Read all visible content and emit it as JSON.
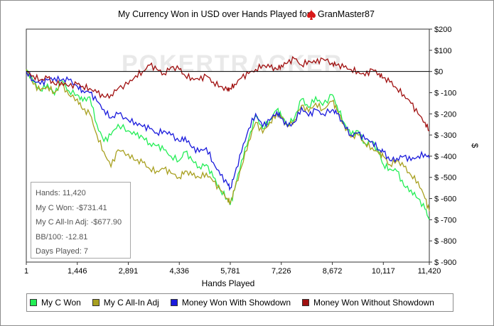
{
  "chart_data": {
    "type": "line",
    "title": "My Currency Won in USD over Hands Played for",
    "player": "GranMaster87",
    "watermark": "POKERTRACKER",
    "xlabel": "Hands Played",
    "ylabel": "$",
    "xlim": [
      1,
      11420
    ],
    "ylim": [
      -900,
      200
    ],
    "x_ticks": [
      "1",
      "1,446",
      "2,891",
      "4,336",
      "5,781",
      "7,226",
      "8,672",
      "10,117",
      "11,420"
    ],
    "x_tick_values": [
      1,
      1446,
      2891,
      4336,
      5781,
      7226,
      8672,
      10117,
      11420
    ],
    "y_ticks": [
      "$200",
      "$100",
      "$0",
      "$ -100",
      "$ -200",
      "$ -300",
      "$ -400",
      "$ -500",
      "$ -600",
      "$ -700",
      "$ -800",
      "$ -900"
    ],
    "y_tick_values": [
      200,
      100,
      0,
      -100,
      -200,
      -300,
      -400,
      -500,
      -600,
      -700,
      -800,
      -900
    ],
    "grid": false,
    "zero_line": true,
    "legend_position": "bottom",
    "x": [
      1,
      200,
      400,
      600,
      800,
      1000,
      1200,
      1446,
      1600,
      1800,
      2000,
      2200,
      2400,
      2600,
      2891,
      3100,
      3300,
      3500,
      3700,
      3900,
      4100,
      4336,
      4500,
      4700,
      4900,
      5100,
      5300,
      5500,
      5700,
      5781,
      5900,
      6100,
      6300,
      6500,
      6700,
      6900,
      7100,
      7226,
      7400,
      7600,
      7800,
      8000,
      8200,
      8400,
      8672,
      8800,
      9000,
      9200,
      9400,
      9600,
      9800,
      10000,
      10117,
      10300,
      10500,
      10700,
      10900,
      11100,
      11300,
      11420
    ],
    "series": [
      {
        "name": "My C Won",
        "color": "#22ee55",
        "values": [
          10,
          -50,
          -90,
          -60,
          -110,
          -40,
          -90,
          -110,
          -140,
          -120,
          -250,
          -330,
          -300,
          -250,
          -280,
          -300,
          -310,
          -340,
          -350,
          -370,
          -400,
          -420,
          -380,
          -420,
          -450,
          -440,
          -500,
          -560,
          -600,
          -630,
          -560,
          -420,
          -320,
          -210,
          -270,
          -230,
          -180,
          -210,
          -250,
          -220,
          -130,
          -170,
          -120,
          -160,
          -110,
          -160,
          -240,
          -300,
          -280,
          -340,
          -330,
          -390,
          -440,
          -460,
          -470,
          -540,
          -560,
          -600,
          -650,
          -700
        ]
      },
      {
        "name": "My C All-In Adj",
        "color": "#a8a020",
        "values": [
          10,
          -60,
          -90,
          -70,
          -100,
          -60,
          -110,
          -130,
          -180,
          -200,
          -300,
          -380,
          -450,
          -370,
          -390,
          -420,
          -430,
          -460,
          -470,
          -460,
          -480,
          -500,
          -470,
          -490,
          -500,
          -480,
          -520,
          -560,
          -600,
          -620,
          -560,
          -450,
          -330,
          -240,
          -290,
          -240,
          -200,
          -220,
          -260,
          -230,
          -160,
          -190,
          -150,
          -180,
          -140,
          -180,
          -250,
          -310,
          -300,
          -340,
          -360,
          -390,
          -400,
          -440,
          -420,
          -450,
          -490,
          -520,
          -600,
          -660
        ]
      },
      {
        "name": "Money Won With Showdown",
        "color": "#1a1adc",
        "values": [
          0,
          -40,
          -60,
          -40,
          -30,
          -40,
          -40,
          -70,
          -90,
          -100,
          -140,
          -180,
          -220,
          -200,
          -230,
          -240,
          -260,
          -270,
          -290,
          -280,
          -300,
          -330,
          -310,
          -360,
          -380,
          -360,
          -430,
          -490,
          -530,
          -550,
          -490,
          -380,
          -270,
          -200,
          -260,
          -230,
          -190,
          -220,
          -260,
          -240,
          -170,
          -210,
          -180,
          -200,
          -180,
          -200,
          -250,
          -300,
          -290,
          -320,
          -330,
          -370,
          -380,
          -420,
          -410,
          -400,
          -420,
          -400,
          -390,
          -410
        ]
      },
      {
        "name": "Money Won Without Showdown",
        "color": "#a01010",
        "values": [
          0,
          -20,
          -40,
          -30,
          -60,
          -50,
          -70,
          -60,
          -70,
          -80,
          -100,
          -120,
          -110,
          -80,
          -60,
          -20,
          0,
          30,
          10,
          -10,
          20,
          10,
          -20,
          -30,
          -40,
          -20,
          -50,
          -70,
          -90,
          -80,
          -60,
          -30,
          -10,
          10,
          30,
          20,
          10,
          30,
          40,
          60,
          30,
          50,
          40,
          60,
          40,
          30,
          20,
          10,
          0,
          -20,
          10,
          -10,
          -30,
          -50,
          -80,
          -110,
          -150,
          -200,
          -240,
          -280
        ]
      }
    ]
  },
  "stats": [
    "Hands: 11,420",
    "My C Won: -$731.41",
    "My C All-In Adj: -$677.90",
    "BB/100: -12.81",
    "Days Played: 7"
  ],
  "legend": [
    {
      "label": "My C Won",
      "color": "#22ee55"
    },
    {
      "label": "My C All-In Adj",
      "color": "#a8a020"
    },
    {
      "label": "Money Won With Showdown",
      "color": "#1a1adc"
    },
    {
      "label": "Money Won Without Showdown",
      "color": "#a01010"
    }
  ]
}
